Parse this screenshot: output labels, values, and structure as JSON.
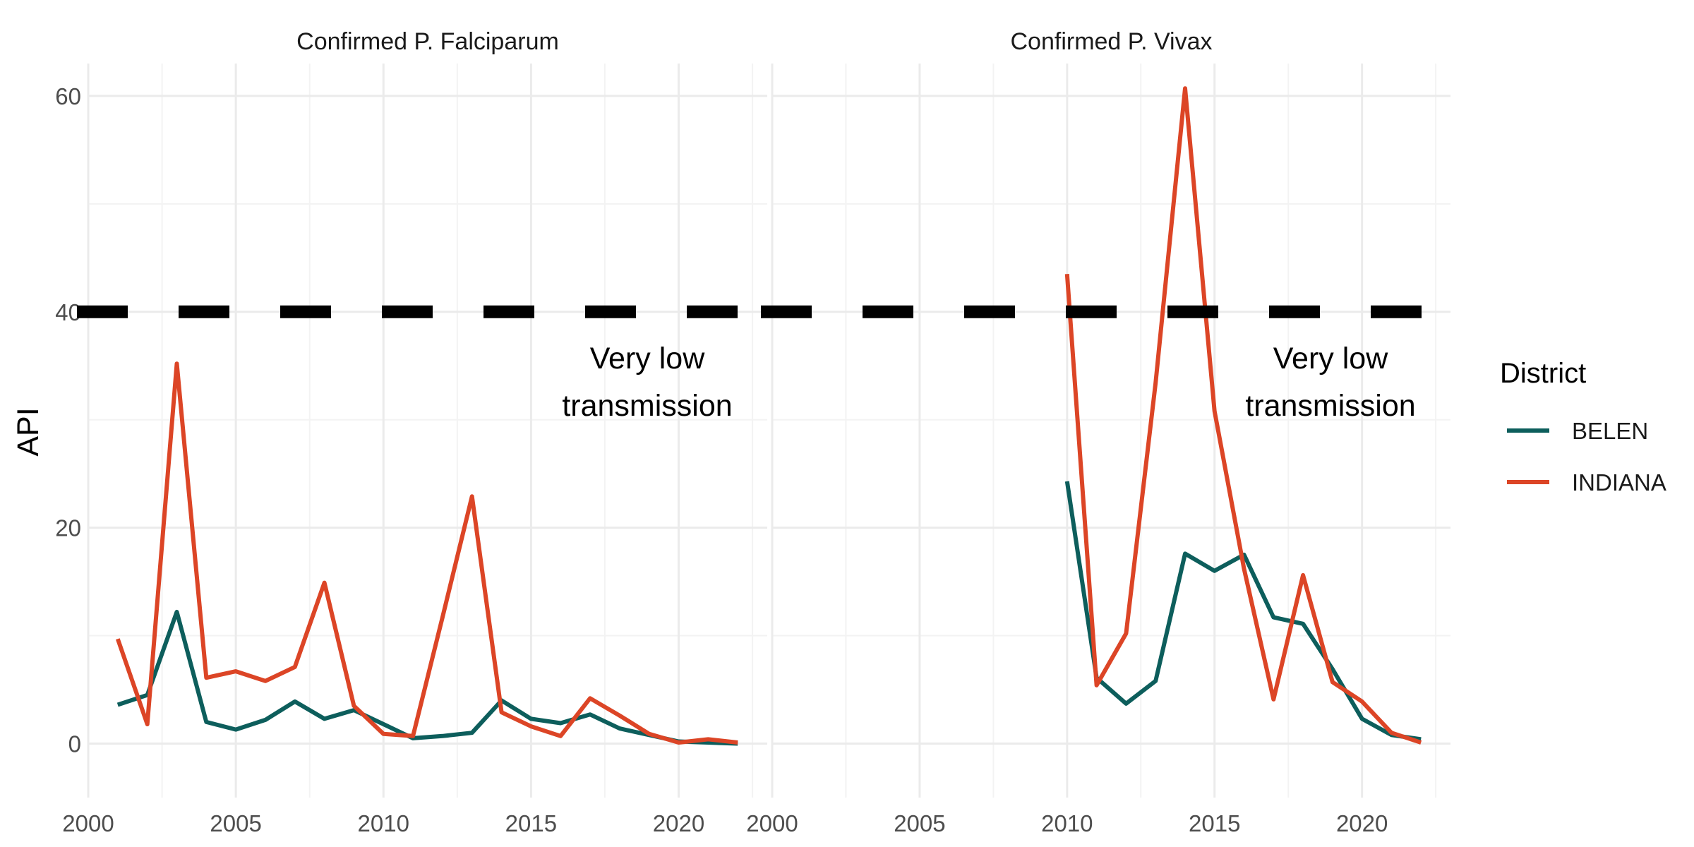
{
  "chart_data": {
    "type": "line",
    "ylabel": "API",
    "legend": {
      "title": "District",
      "position": "right"
    },
    "colors": {
      "BELEN": "#0d5e5c",
      "INDIANA": "#dc4526"
    },
    "threshold": {
      "value": 40,
      "style": "dashed",
      "color": "#000000"
    },
    "annotation_lines": [
      "Very low",
      "transmission"
    ],
    "xlim": [
      2000,
      2023
    ],
    "ylim": [
      -5,
      63
    ],
    "xticks": [
      2000,
      2005,
      2010,
      2015,
      2020
    ],
    "yticks": [
      0,
      20,
      40,
      60
    ],
    "grid": true,
    "panels": [
      {
        "title": "Confirmed P. Falciparum",
        "series": [
          {
            "name": "BELEN",
            "x": [
              2001,
              2002,
              2003,
              2004,
              2005,
              2006,
              2007,
              2008,
              2009,
              2010,
              2011,
              2012,
              2013,
              2014,
              2015,
              2016,
              2017,
              2018,
              2019,
              2020,
              2021,
              2022
            ],
            "y": [
              3.6,
              4.5,
              12.2,
              2.0,
              1.3,
              2.2,
              3.9,
              2.3,
              3.1,
              1.8,
              0.5,
              0.7,
              1.0,
              4.0,
              2.3,
              1.9,
              2.7,
              1.4,
              0.8,
              0.2,
              0.1,
              0.0
            ]
          },
          {
            "name": "INDIANA",
            "x": [
              2001,
              2002,
              2003,
              2004,
              2005,
              2006,
              2007,
              2008,
              2009,
              2010,
              2011,
              2012,
              2013,
              2014,
              2015,
              2016,
              2017,
              2018,
              2019,
              2020,
              2021,
              2022
            ],
            "y": [
              9.7,
              1.8,
              35.2,
              6.1,
              6.7,
              5.8,
              7.1,
              14.9,
              3.5,
              0.9,
              0.7,
              11.7,
              22.9,
              2.9,
              1.6,
              0.7,
              4.2,
              2.6,
              0.9,
              0.1,
              0.4,
              0.1
            ]
          }
        ]
      },
      {
        "title": "Confirmed P. Vivax",
        "series": [
          {
            "name": "BELEN",
            "x": [
              2010,
              2011,
              2012,
              2013,
              2014,
              2015,
              2016,
              2017,
              2018,
              2019,
              2020,
              2021,
              2022
            ],
            "y": [
              24.3,
              6.1,
              3.7,
              5.8,
              17.6,
              16.0,
              17.5,
              11.7,
              11.1,
              6.9,
              2.3,
              0.8,
              0.4
            ]
          },
          {
            "name": "INDIANA",
            "x": [
              2010,
              2011,
              2012,
              2013,
              2014,
              2015,
              2016,
              2017,
              2018,
              2019,
              2020,
              2021,
              2022
            ],
            "y": [
              43.5,
              5.4,
              10.2,
              33.4,
              60.7,
              30.8,
              16.2,
              4.1,
              15.6,
              5.7,
              3.9,
              1.0,
              0.1
            ]
          }
        ]
      }
    ]
  }
}
